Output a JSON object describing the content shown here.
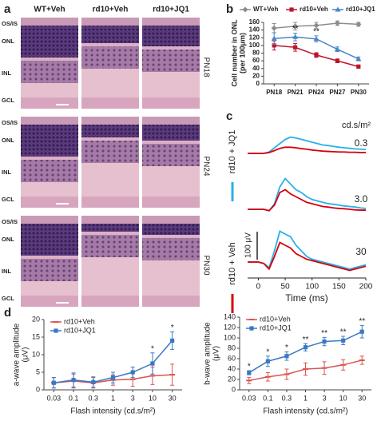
{
  "panel_labels": [
    "a",
    "b",
    "c",
    "d"
  ],
  "histology": {
    "columns": [
      "WT+Veh",
      "rd10+Veh",
      "rd10+JQ1"
    ],
    "rows": [
      "PN18",
      "PN24",
      "PN30"
    ],
    "layers": [
      "OS/IS",
      "ONL",
      "INL",
      "GCL"
    ]
  },
  "chart_data": [
    {
      "type": "line",
      "ylabel": [
        "Cell number in ONL",
        "(per 100μm)"
      ],
      "categories": [
        "PN18",
        "PN21",
        "PN24",
        "PN27",
        "PN30"
      ],
      "series": [
        {
          "name": "WT+Veh",
          "color": "#8c8c8c",
          "marker": "diamond",
          "values": [
            145,
            150,
            152,
            158,
            155
          ],
          "errors": [
            12,
            10,
            8,
            6,
            5
          ]
        },
        {
          "name": "rd10+Veh",
          "color": "#c0142b",
          "marker": "square",
          "values": [
            100,
            95,
            75,
            60,
            45
          ],
          "errors": [
            12,
            10,
            6,
            5,
            4
          ]
        },
        {
          "name": "rd10+JQ1",
          "color": "#4a86c8",
          "marker": "triangle",
          "values": [
            118,
            122,
            117,
            90,
            65
          ],
          "errors": [
            15,
            10,
            8,
            6,
            5
          ]
        }
      ],
      "annotations": [
        null,
        "**",
        "**",
        null,
        null
      ],
      "ylim": [
        0,
        160
      ],
      "yticks": [
        0,
        20,
        40,
        60,
        80,
        100,
        120,
        140,
        160
      ],
      "legend": "top"
    },
    {
      "type": "erg",
      "intensity_unit": "cd.s/m²",
      "intensities": [
        "0.3",
        "3.0",
        "30"
      ],
      "xlabel": "Time (ms)",
      "x": [
        -20,
        -10,
        0,
        10,
        20,
        30,
        40,
        50,
        60,
        70,
        80,
        90,
        100,
        110,
        120,
        130,
        140,
        150,
        160,
        170,
        180,
        190,
        200
      ],
      "xlim": [
        -20,
        200
      ],
      "xticks": [
        0,
        50,
        100,
        150,
        200
      ],
      "scale_bar": {
        "value": 100,
        "label": "100 μV"
      },
      "series": [
        {
          "name": "rd10 + JQ1",
          "color": "#2ab0e8",
          "values": [
            [
              0,
              0,
              0,
              0,
              5,
              20,
              35,
              50,
              58,
              55,
              50,
              45,
              40,
              35,
              30,
              28,
              25,
              22,
              20,
              18,
              16,
              15,
              14
            ],
            [
              0,
              0,
              0,
              0,
              -5,
              20,
              80,
              110,
              90,
              70,
              60,
              45,
              35,
              30,
              25,
              20,
              18,
              15,
              12,
              10,
              8,
              5,
              3
            ],
            [
              0,
              0,
              0,
              -5,
              -20,
              40,
              110,
              100,
              90,
              60,
              40,
              20,
              10,
              5,
              0,
              -5,
              -10,
              -15,
              -20,
              -25,
              -20,
              -15,
              -10
            ]
          ]
        },
        {
          "name": "rd10 + Veh",
          "color": "#d6000e",
          "values": [
            [
              0,
              0,
              0,
              0,
              3,
              10,
              18,
              22,
              22,
              20,
              17,
              15,
              12,
              10,
              8,
              7,
              6,
              5,
              5,
              4,
              4,
              3,
              3
            ],
            [
              0,
              0,
              0,
              0,
              -5,
              15,
              60,
              70,
              55,
              45,
              35,
              25,
              20,
              15,
              10,
              8,
              5,
              3,
              2,
              0,
              -2,
              -3,
              -3
            ],
            [
              0,
              0,
              0,
              -5,
              -25,
              20,
              70,
              60,
              50,
              30,
              20,
              10,
              5,
              0,
              -5,
              -10,
              -15,
              -20,
              -25,
              -30,
              -25,
              -20,
              -15
            ]
          ]
        }
      ]
    },
    {
      "type": "line",
      "ylabel": [
        "a-wave amplitude",
        "(μV)"
      ],
      "xlabel": "Flash intensity (cd.s/m²)",
      "categories": [
        "0.03",
        "0.1",
        "0.3",
        "1",
        "3",
        "10",
        "30"
      ],
      "series": [
        {
          "name": "rd10+Veh",
          "color": "#d9534f",
          "marker": "dash",
          "values": [
            2,
            2.5,
            2,
            2.8,
            3,
            4,
            4.3
          ],
          "errors": [
            1.5,
            2,
            1.5,
            1.5,
            2,
            2.5,
            3
          ]
        },
        {
          "name": "rd10+JQ1",
          "color": "#3a78c3",
          "marker": "square",
          "values": [
            2,
            2.8,
            2.2,
            3.5,
            5,
            7.5,
            14
          ],
          "errors": [
            1.5,
            2,
            1.5,
            1.5,
            1.5,
            3,
            2.5
          ]
        }
      ],
      "annotations": [
        null,
        null,
        null,
        null,
        null,
        "*",
        "*"
      ],
      "ylim": [
        0,
        20
      ],
      "yticks": [
        0,
        5,
        10,
        15,
        20
      ],
      "legend": "upper left"
    },
    {
      "type": "line",
      "ylabel": [
        "b-wave amplitude",
        "(μV)"
      ],
      "xlabel": "Flash intensity (cd.s/m²)",
      "categories": [
        "0.03",
        "0.1",
        "0.3",
        "1",
        "3",
        "10",
        "30"
      ],
      "series": [
        {
          "name": "rd10+Veh",
          "color": "#d9534f",
          "marker": "dash",
          "values": [
            18,
            25,
            30,
            40,
            42,
            48,
            57
          ],
          "errors": [
            6,
            8,
            10,
            12,
            12,
            10,
            8
          ]
        },
        {
          "name": "rd10+JQ1",
          "color": "#3a78c3",
          "marker": "square",
          "values": [
            33,
            55,
            65,
            82,
            93,
            95,
            112
          ],
          "errors": [
            4,
            10,
            8,
            7,
            8,
            8,
            12
          ]
        }
      ],
      "annotations": [
        "*",
        "*",
        "*",
        "**",
        "**",
        "**",
        "**"
      ],
      "ylim": [
        0,
        140
      ],
      "yticks": [
        0,
        20,
        40,
        60,
        80,
        100,
        120,
        140
      ],
      "legend": "upper left"
    }
  ]
}
